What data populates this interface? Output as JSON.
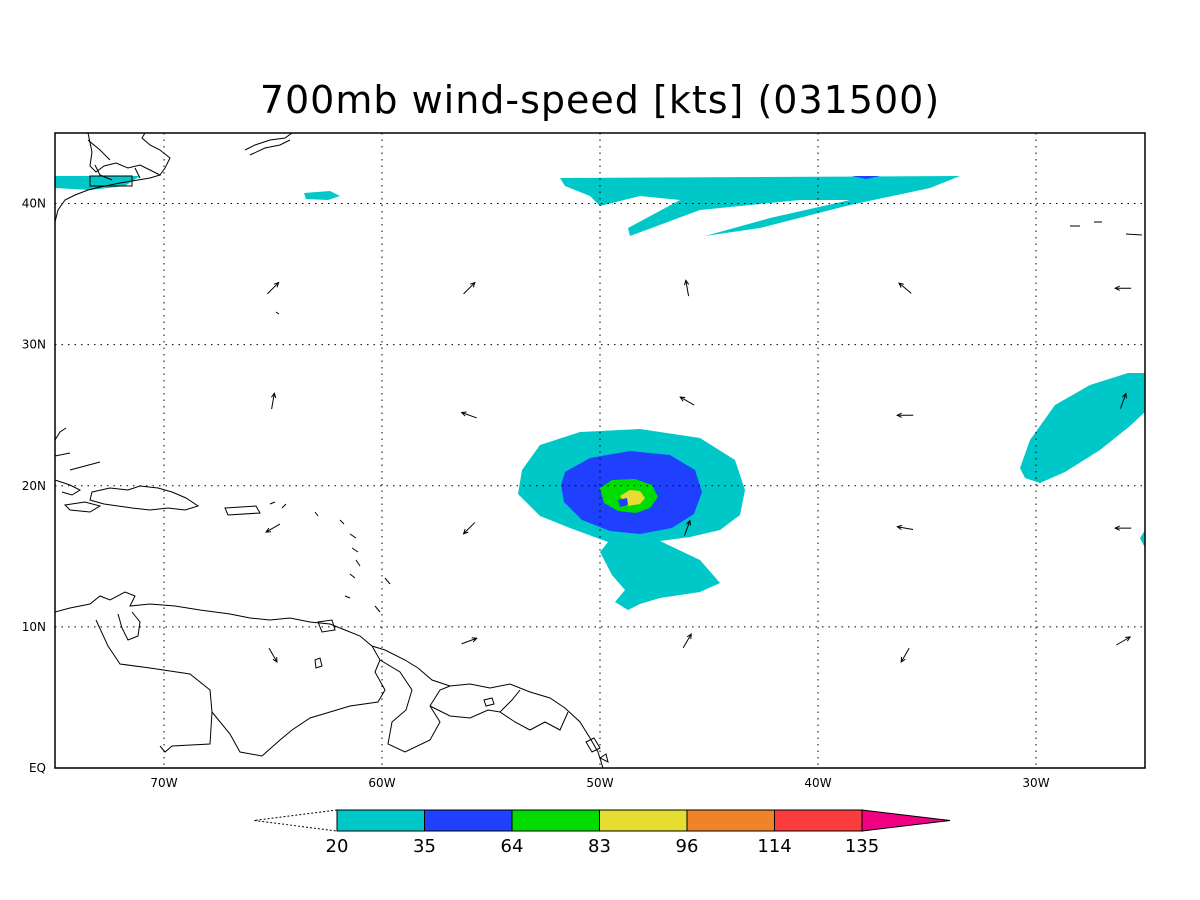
{
  "title": "700mb wind-speed [kts] (031500)",
  "map": {
    "lon_labels": [
      "70W",
      "60W",
      "50W",
      "40W",
      "30W"
    ],
    "lat_labels": [
      "EQ",
      "10N",
      "20N",
      "30N",
      "40N"
    ]
  },
  "colorbar": {
    "levels": [
      "20",
      "35",
      "64",
      "83",
      "96",
      "114",
      "135"
    ],
    "colors": [
      "#00c8c8",
      "#2040ff",
      "#00dc00",
      "#e6dc32",
      "#f08228",
      "#fa3c3c",
      "#f00082"
    ]
  },
  "colors": {
    "land_outline": "#000000",
    "grid": "#000000"
  },
  "shading": {
    "storm_center": "50W 20N",
    "max_band": "96"
  },
  "arrows": [
    {
      "lon": -65,
      "lat": 34,
      "dir": 45
    },
    {
      "lon": -56,
      "lat": 34,
      "dir": 45
    },
    {
      "lon": -46,
      "lat": 34,
      "dir": 350
    },
    {
      "lon": -36,
      "lat": 34,
      "dir": 310
    },
    {
      "lon": -26,
      "lat": 34,
      "dir": 270
    },
    {
      "lon": -65,
      "lat": 26,
      "dir": 10
    },
    {
      "lon": -56,
      "lat": 25,
      "dir": 290
    },
    {
      "lon": -46,
      "lat": 26,
      "dir": 300
    },
    {
      "lon": -36,
      "lat": 25,
      "dir": 270
    },
    {
      "lon": -26,
      "lat": 26,
      "dir": 20
    },
    {
      "lon": -65,
      "lat": 17,
      "dir": 240
    },
    {
      "lon": -56,
      "lat": 17,
      "dir": 225
    },
    {
      "lon": -46,
      "lat": 17,
      "dir": 20
    },
    {
      "lon": -36,
      "lat": 17,
      "dir": 280
    },
    {
      "lon": -26,
      "lat": 17,
      "dir": 270
    },
    {
      "lon": -65,
      "lat": 8,
      "dir": 150
    },
    {
      "lon": -56,
      "lat": 9,
      "dir": 70
    },
    {
      "lon": -46,
      "lat": 9,
      "dir": 30
    },
    {
      "lon": -36,
      "lat": 8,
      "dir": 210
    },
    {
      "lon": -26,
      "lat": 9,
      "dir": 60
    }
  ]
}
